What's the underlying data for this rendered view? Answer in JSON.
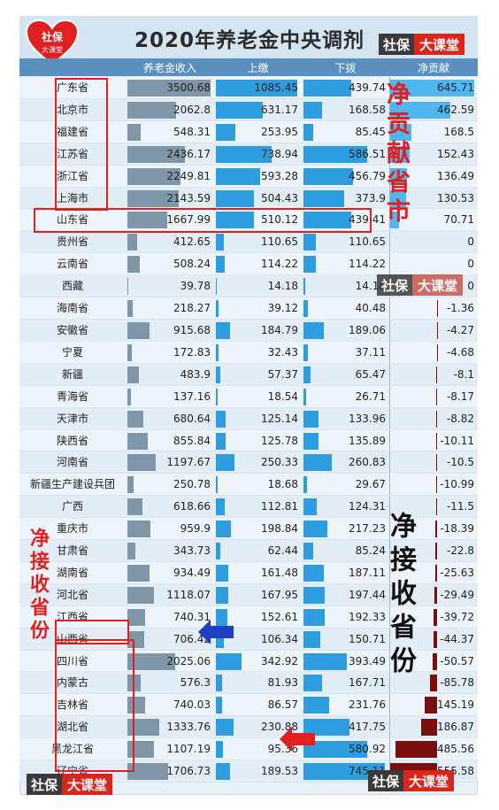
{
  "title": "2020年养老金中央调剂",
  "brand": {
    "a": "社保",
    "b": "大课堂"
  },
  "logo": {
    "line1": "社保",
    "line2": "大课堂"
  },
  "columns": [
    "养老金收入",
    "上缴",
    "下拨",
    "净贡献"
  ],
  "rows": [
    {
      "p": "广东省",
      "inc": "3500.68",
      "up": "1085.45",
      "down": "439.74",
      "net": "645.71"
    },
    {
      "p": "北京市",
      "inc": "2062.8",
      "up": "631.17",
      "down": "168.58",
      "net": "462.59"
    },
    {
      "p": "福建省",
      "inc": "548.31",
      "up": "253.95",
      "down": "85.45",
      "net": "168.5"
    },
    {
      "p": "江苏省",
      "inc": "2436.17",
      "up": "738.94",
      "down": "586.51",
      "net": "152.43"
    },
    {
      "p": "浙江省",
      "inc": "2249.81",
      "up": "593.28",
      "down": "456.79",
      "net": "136.49"
    },
    {
      "p": "上海市",
      "inc": "2143.59",
      "up": "504.43",
      "down": "373.9",
      "net": "130.53"
    },
    {
      "p": "山东省",
      "inc": "1667.99",
      "up": "510.12",
      "down": "439.41",
      "net": "70.71"
    },
    {
      "p": "贵州省",
      "inc": "412.65",
      "up": "110.65",
      "down": "110.65",
      "net": "0"
    },
    {
      "p": "云南省",
      "inc": "508.24",
      "up": "114.22",
      "down": "114.22",
      "net": "0"
    },
    {
      "p": "西藏",
      "inc": "39.78",
      "up": "14.18",
      "down": "14.18",
      "net": "0"
    },
    {
      "p": "海南省",
      "inc": "218.27",
      "up": "39.12",
      "down": "40.48",
      "net": "-1.36"
    },
    {
      "p": "安徽省",
      "inc": "915.68",
      "up": "184.79",
      "down": "189.06",
      "net": "-4.27"
    },
    {
      "p": "宁夏",
      "inc": "172.83",
      "up": "32.43",
      "down": "37.11",
      "net": "-4.68"
    },
    {
      "p": "新疆",
      "inc": "483.9",
      "up": "57.37",
      "down": "65.47",
      "net": "-8.1"
    },
    {
      "p": "青海省",
      "inc": "137.16",
      "up": "18.54",
      "down": "26.71",
      "net": "-8.17"
    },
    {
      "p": "天津市",
      "inc": "680.64",
      "up": "125.14",
      "down": "133.96",
      "net": "-8.82"
    },
    {
      "p": "陕西省",
      "inc": "855.84",
      "up": "125.78",
      "down": "135.89",
      "net": "-10.11"
    },
    {
      "p": "河南省",
      "inc": "1197.67",
      "up": "250.33",
      "down": "260.83",
      "net": "-10.5"
    },
    {
      "p": "新疆生产建设兵团",
      "inc": "250.78",
      "up": "18.68",
      "down": "29.67",
      "net": "-10.99"
    },
    {
      "p": "广西",
      "inc": "618.66",
      "up": "112.81",
      "down": "124.31",
      "net": "-11.5"
    },
    {
      "p": "重庆市",
      "inc": "959.9",
      "up": "198.84",
      "down": "217.23",
      "net": "-18.39"
    },
    {
      "p": "甘肃省",
      "inc": "343.73",
      "up": "62.44",
      "down": "85.24",
      "net": "-22.8"
    },
    {
      "p": "湖南省",
      "inc": "934.49",
      "up": "161.48",
      "down": "187.11",
      "net": "-25.63"
    },
    {
      "p": "河北省",
      "inc": "1118.07",
      "up": "167.95",
      "down": "197.44",
      "net": "-29.49"
    },
    {
      "p": "江西省",
      "inc": "740.31",
      "up": "152.61",
      "down": "192.33",
      "net": "-39.72"
    },
    {
      "p": "山西省",
      "inc": "706.42",
      "up": "106.34",
      "down": "150.71",
      "net": "-44.37"
    },
    {
      "p": "四川省",
      "inc": "2025.06",
      "up": "342.92",
      "down": "393.49",
      "net": "-50.57"
    },
    {
      "p": "内蒙古",
      "inc": "576.3",
      "up": "81.93",
      "down": "167.71",
      "net": "-85.78"
    },
    {
      "p": "吉林省",
      "inc": "740.03",
      "up": "86.57",
      "down": "231.76",
      "net": "-145.19"
    },
    {
      "p": "湖北省",
      "inc": "1333.76",
      "up": "230.88",
      "down": "417.75",
      "net": "-186.87"
    },
    {
      "p": "黑龙江省",
      "inc": "1107.19",
      "up": "95.36",
      "down": "580.92",
      "net": "-485.56"
    },
    {
      "p": "辽宁省",
      "inc": "1706.73",
      "up": "189.53",
      "down": "745.11",
      "net": "-555.58"
    }
  ],
  "label_contributor": "净贡献省市",
  "label_receiver_left": "净接收省份",
  "label_receiver_right": "净接收省份",
  "colors": {
    "red": "#e02020",
    "bar_blue": "#2e9de0",
    "bar_grey": "#7f96a8",
    "neg_bar": "#7a0f0f"
  }
}
